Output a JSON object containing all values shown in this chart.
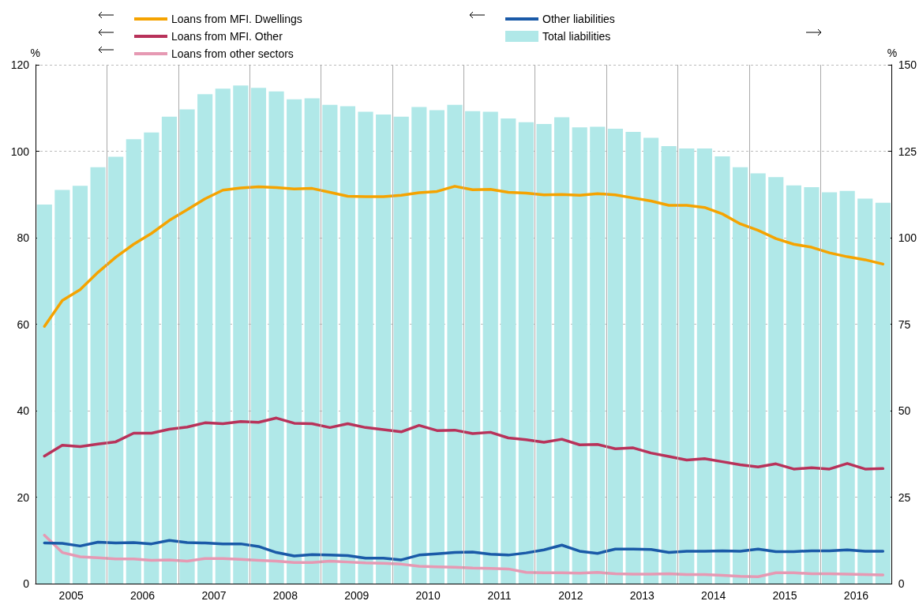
{
  "chart_data": {
    "type": "line",
    "ylabel": "%",
    "y2label": "%",
    "x": [
      2005.125,
      2005.375,
      2005.625,
      2005.875,
      2006.125,
      2006.375,
      2006.625,
      2006.875,
      2007.125,
      2007.375,
      2007.625,
      2007.875,
      2008.125,
      2008.375,
      2008.625,
      2008.875,
      2009.125,
      2009.375,
      2009.625,
      2009.875,
      2010.125,
      2010.375,
      2010.625,
      2010.875,
      2011.125,
      2011.375,
      2011.625,
      2011.875,
      2012.125,
      2012.375,
      2012.625,
      2012.875,
      2013.125,
      2013.375,
      2013.625,
      2013.875,
      2014.125,
      2014.375,
      2014.625,
      2014.875,
      2015.125,
      2015.375,
      2015.625,
      2015.875,
      2016.125,
      2016.375,
      2016.625,
      2016.875
    ],
    "xlim": [
      2005,
      2017
    ],
    "xticks": [
      {
        "value": 2005.5,
        "label": "2005"
      },
      {
        "value": 2006,
        "label": null
      },
      {
        "value": 2006.5,
        "label": "2006"
      },
      {
        "value": 2007,
        "label": null
      },
      {
        "value": 2007.5,
        "label": "2007"
      },
      {
        "value": 2008,
        "label": null
      },
      {
        "value": 2008.5,
        "label": "2008"
      },
      {
        "value": 2009,
        "label": null
      },
      {
        "value": 2009.5,
        "label": "2009"
      },
      {
        "value": 2010,
        "label": null
      },
      {
        "value": 2010.5,
        "label": "2010"
      },
      {
        "value": 2011,
        "label": null
      },
      {
        "value": 2011.5,
        "label": "2011"
      },
      {
        "value": 2012,
        "label": null
      },
      {
        "value": 2012.5,
        "label": "2012"
      },
      {
        "value": 2013,
        "label": null
      },
      {
        "value": 2013.5,
        "label": "2013"
      },
      {
        "value": 2014,
        "label": null
      },
      {
        "value": 2014.5,
        "label": "2014"
      },
      {
        "value": 2015,
        "label": null
      },
      {
        "value": 2015.5,
        "label": "2015"
      },
      {
        "value": 2016,
        "label": null
      },
      {
        "value": 2016.5,
        "label": "2016"
      }
    ],
    "ylim": [
      0,
      120
    ],
    "yticks": [
      0,
      20,
      40,
      60,
      80,
      100,
      120
    ],
    "y2lim": [
      0,
      150
    ],
    "y2ticks": [
      0,
      25,
      50,
      75,
      100,
      125,
      150
    ],
    "grid": true,
    "legend": "top",
    "marker": "none",
    "line_style": "solid",
    "series": [
      {
        "name": "Loans from MFI. Dwellings",
        "axis": "y",
        "color": "#f5a300",
        "values": [
          59.5,
          65.5,
          68,
          72,
          75.5,
          78.5,
          81,
          84,
          86.5,
          89,
          91,
          91.5,
          91.8,
          91.6,
          91.3,
          91.4,
          90.5,
          89.6,
          89.5,
          89.5,
          89.8,
          90.4,
          90.7,
          91.9,
          91.1,
          91.2,
          90.5,
          90.3,
          89.9,
          90,
          89.8,
          90.2,
          89.9,
          89.2,
          88.5,
          87.5,
          87.5,
          87,
          85.5,
          83.2,
          81.7,
          79.8,
          78.5,
          77.8,
          76.5,
          75.6,
          74.9,
          73.9
        ]
      },
      {
        "name": "Loans from MFI. Other",
        "axis": "y",
        "color": "#b8325a",
        "values": [
          29.5,
          32,
          31.7,
          32.3,
          32.8,
          34.8,
          34.8,
          35.7,
          36.2,
          37.2,
          37,
          37.5,
          37.3,
          38.3,
          37.1,
          37,
          36.1,
          37,
          36.1,
          35.6,
          35.1,
          36.6,
          35.4,
          35.5,
          34.7,
          35,
          33.7,
          33.3,
          32.7,
          33.4,
          32.1,
          32.2,
          31.2,
          31.4,
          30.2,
          29.4,
          28.6,
          28.9,
          28.2,
          27.5,
          27,
          27.7,
          26.5,
          26.8,
          26.5,
          27.8,
          26.5,
          26.6
        ]
      },
      {
        "name": "Loans from other sectors",
        "axis": "y",
        "color": "#e699b3",
        "values": [
          11.2,
          7.2,
          6.2,
          6,
          5.7,
          5.7,
          5.4,
          5.5,
          5.2,
          5.8,
          5.8,
          5.6,
          5.4,
          5.2,
          4.9,
          4.9,
          5.2,
          5,
          4.8,
          4.7,
          4.5,
          4,
          3.9,
          3.8,
          3.6,
          3.5,
          3.4,
          2.6,
          2.5,
          2.5,
          2.4,
          2.6,
          2.3,
          2.2,
          2.2,
          2.3,
          2.1,
          2.1,
          1.9,
          1.7,
          1.6,
          2.5,
          2.5,
          2.3,
          2.3,
          2.2,
          2.1,
          2
        ]
      },
      {
        "name": "Other liabilities",
        "axis": "y",
        "color": "#1a5aa8",
        "values": [
          9.4,
          9.3,
          8.7,
          9.6,
          9.4,
          9.5,
          9.2,
          10,
          9.5,
          9.4,
          9.2,
          9.2,
          8.6,
          7.2,
          6.4,
          6.7,
          6.6,
          6.5,
          5.9,
          5.9,
          5.5,
          6.6,
          6.9,
          7.2,
          7.3,
          6.8,
          6.6,
          7.1,
          7.8,
          8.9,
          7.5,
          7,
          8,
          8,
          7.9,
          7.2,
          7.5,
          7.5,
          7.6,
          7.5,
          8,
          7.4,
          7.4,
          7.6,
          7.6,
          7.8,
          7.5,
          7.5
        ]
      },
      {
        "name": "Total liabilities",
        "type": "bar",
        "axis": "y2",
        "color": "#b0e8e8",
        "values": [
          109.6,
          113.8,
          115,
          120.4,
          123.4,
          128.5,
          130.4,
          135,
          137.1,
          141.5,
          143.1,
          144,
          143.3,
          142.3,
          140,
          140.3,
          138.4,
          138,
          136.4,
          135.6,
          135,
          137.8,
          136.9,
          138.4,
          136.6,
          136.4,
          134.5,
          133.4,
          132.9,
          134.8,
          131.9,
          132.1,
          131.5,
          130.6,
          128.9,
          126.5,
          125.8,
          125.8,
          123.5,
          120.4,
          118.6,
          117.5,
          115.1,
          114.6,
          113.1,
          113.5,
          111.3,
          110.1
        ]
      }
    ]
  }
}
